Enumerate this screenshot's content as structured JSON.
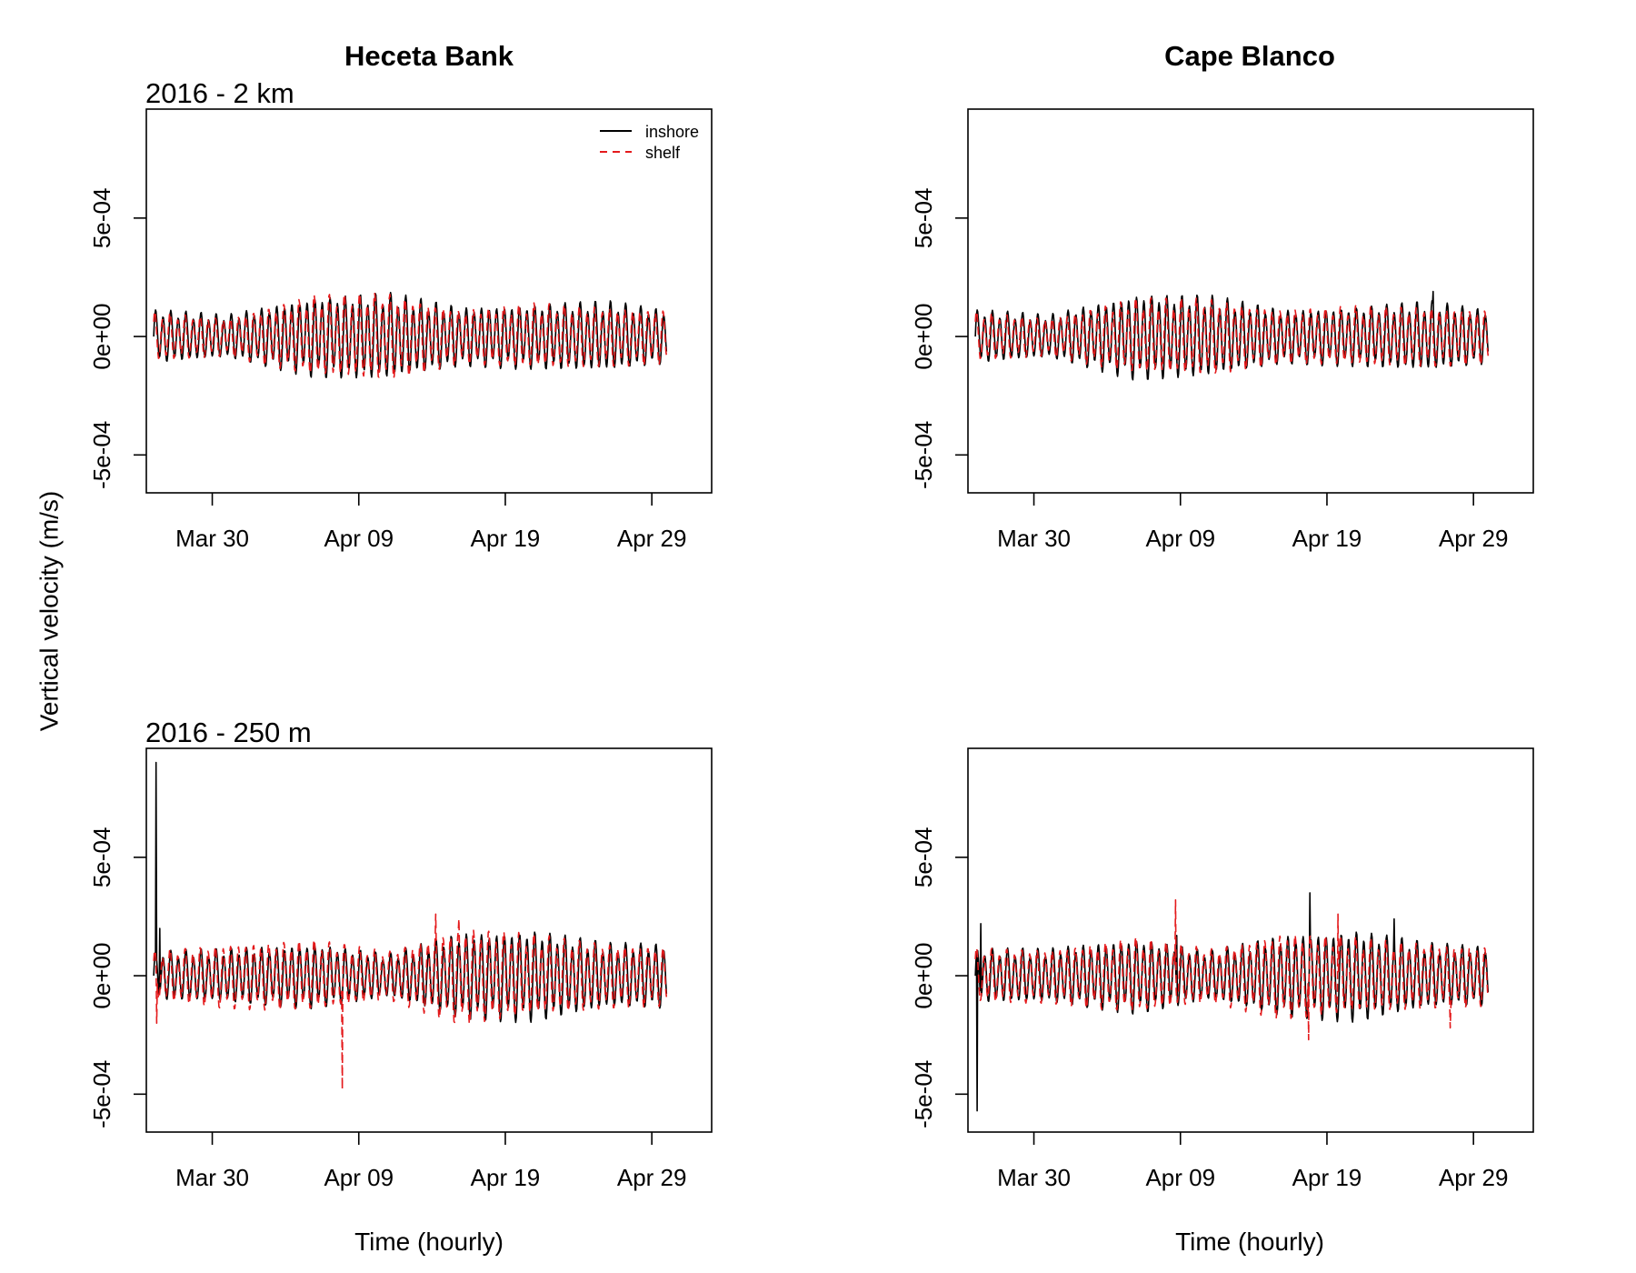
{
  "figure": {
    "y_axis_title": "Vertical velocity (m/s)",
    "x_axis_title": "Time (hourly)",
    "column_titles": [
      "Heceta Bank",
      "Cape Blanco"
    ],
    "row_labels": [
      "2016 - 2 km",
      "2016 - 250 m"
    ]
  },
  "legend": {
    "position": "top-right of first panel",
    "entries": [
      {
        "label": "inshore",
        "color": "#000000",
        "line": "solid"
      },
      {
        "label": "shelf",
        "color": "#e41a1c",
        "line": "dashed"
      }
    ]
  },
  "colors": {
    "inshore": "#000000",
    "shelf": "#e41a1c"
  },
  "chart_data": [
    {
      "type": "line",
      "panel": "Heceta Bank, 2016 - 2 km",
      "xlabel": "Time (hourly)",
      "ylabel": "Vertical velocity (m/s)",
      "x_start": "2016-03-26",
      "x_end": "2016-04-30",
      "xlim": [
        "2016-03-25T12:00",
        "2016-05-03T02:00"
      ],
      "ylim": [
        -0.00066,
        0.00096
      ],
      "x_ticks": [
        "Mar 30",
        "Apr 09",
        "Apr 19",
        "Apr 29"
      ],
      "y_ticks": [
        "-5e-04",
        "0e+00",
        "5e-04"
      ],
      "series": [
        {
          "name": "inshore",
          "period_hours": 12.42,
          "mean": 0.0,
          "amplitude_envelope": [
            {
              "date": "2016-03-26",
              "amp": 0.0001
            },
            {
              "date": "2016-03-31",
              "amp": 8e-05
            },
            {
              "date": "2016-04-06",
              "amp": 0.00015
            },
            {
              "date": "2016-04-11",
              "amp": 0.00016
            },
            {
              "date": "2016-04-16",
              "amp": 0.00011
            },
            {
              "date": "2016-04-21",
              "amp": 0.00012
            },
            {
              "date": "2016-04-26",
              "amp": 0.00013
            },
            {
              "date": "2016-04-30",
              "amp": 0.0001
            }
          ],
          "spikes": []
        },
        {
          "name": "shelf",
          "period_hours": 12.42,
          "mean": 0.0,
          "amplitude_envelope": [
            {
              "date": "2016-03-26",
              "amp": 9e-05
            },
            {
              "date": "2016-03-31",
              "amp": 7e-05
            },
            {
              "date": "2016-04-06",
              "amp": 0.00015
            },
            {
              "date": "2016-04-11",
              "amp": 0.00016
            },
            {
              "date": "2016-04-16",
              "amp": 0.0001
            },
            {
              "date": "2016-04-21",
              "amp": 0.00012
            },
            {
              "date": "2016-04-26",
              "amp": 0.00011
            },
            {
              "date": "2016-04-30",
              "amp": 0.0001
            }
          ],
          "spikes": []
        }
      ]
    },
    {
      "type": "line",
      "panel": "Cape Blanco, 2016 - 2 km",
      "xlabel": "",
      "ylabel": "",
      "x_start": "2016-03-26",
      "x_end": "2016-04-30",
      "xlim": [
        "2016-03-25T12:00",
        "2016-05-03T02:00"
      ],
      "ylim": [
        -0.00066,
        0.00096
      ],
      "x_ticks": [
        "Mar 30",
        "Apr 09",
        "Apr 19",
        "Apr 29"
      ],
      "y_ticks": [
        "-5e-04",
        "0e+00",
        "5e-04"
      ],
      "series": [
        {
          "name": "inshore",
          "period_hours": 12.42,
          "mean": 0.0,
          "amplitude_envelope": [
            {
              "date": "2016-03-26",
              "amp": 0.0001
            },
            {
              "date": "2016-03-31",
              "amp": 8e-05
            },
            {
              "date": "2016-04-06",
              "amp": 0.00016
            },
            {
              "date": "2016-04-11",
              "amp": 0.00015
            },
            {
              "date": "2016-04-16",
              "amp": 0.0001
            },
            {
              "date": "2016-04-21",
              "amp": 0.00011
            },
            {
              "date": "2016-04-26",
              "amp": 0.00013
            },
            {
              "date": "2016-04-30",
              "amp": 0.0001
            }
          ],
          "spikes": [
            {
              "date": "2016-04-26T06:00",
              "value": 0.00019
            }
          ]
        },
        {
          "name": "shelf",
          "period_hours": 12.42,
          "mean": 0.0,
          "amplitude_envelope": [
            {
              "date": "2016-03-26",
              "amp": 9e-05
            },
            {
              "date": "2016-03-31",
              "amp": 7e-05
            },
            {
              "date": "2016-04-06",
              "amp": 0.00014
            },
            {
              "date": "2016-04-11",
              "amp": 0.00014
            },
            {
              "date": "2016-04-16",
              "amp": 0.0001
            },
            {
              "date": "2016-04-21",
              "amp": 0.00011
            },
            {
              "date": "2016-04-26",
              "amp": 0.00011
            },
            {
              "date": "2016-04-30",
              "amp": 0.0001
            }
          ],
          "spikes": []
        }
      ]
    },
    {
      "type": "line",
      "panel": "Heceta Bank, 2016 - 250 m",
      "xlabel": "Time (hourly)",
      "ylabel": "",
      "x_start": "2016-03-26",
      "x_end": "2016-04-30",
      "xlim": [
        "2016-03-25T12:00",
        "2016-05-03T02:00"
      ],
      "ylim": [
        -0.00066,
        0.00096
      ],
      "x_ticks": [
        "Mar 30",
        "Apr 09",
        "Apr 19",
        "Apr 29"
      ],
      "y_ticks": [
        "-5e-04",
        "0e+00",
        "5e-04"
      ],
      "series": [
        {
          "name": "inshore",
          "period_hours": 12.42,
          "mean": 0.0,
          "amplitude_envelope": [
            {
              "date": "2016-03-26",
              "amp": 9e-05
            },
            {
              "date": "2016-03-31",
              "amp": 0.0001
            },
            {
              "date": "2016-04-06",
              "amp": 0.00012
            },
            {
              "date": "2016-04-11",
              "amp": 8e-05
            },
            {
              "date": "2016-04-16",
              "amp": 0.00016
            },
            {
              "date": "2016-04-21",
              "amp": 0.00017
            },
            {
              "date": "2016-04-26",
              "amp": 0.00012
            },
            {
              "date": "2016-04-30",
              "amp": 0.00012
            }
          ],
          "spikes": [
            {
              "date": "2016-03-26T04:00",
              "value": 0.0009
            },
            {
              "date": "2016-03-26T10:00",
              "value": 0.0002
            }
          ]
        },
        {
          "name": "shelf",
          "period_hours": 12.42,
          "mean": 0.0,
          "amplitude_envelope": [
            {
              "date": "2016-03-26",
              "amp": 9e-05
            },
            {
              "date": "2016-03-31",
              "amp": 0.00012
            },
            {
              "date": "2016-04-06",
              "amp": 0.00013
            },
            {
              "date": "2016-04-11",
              "amp": 9e-05
            },
            {
              "date": "2016-04-16",
              "amp": 0.00018
            },
            {
              "date": "2016-04-21",
              "amp": 0.00015
            },
            {
              "date": "2016-04-26",
              "amp": 0.00012
            },
            {
              "date": "2016-04-30",
              "amp": 0.00011
            }
          ],
          "spikes": [
            {
              "date": "2016-03-26T05:00",
              "value": 0.00039
            },
            {
              "date": "2016-03-26T05:00",
              "value": -0.0002
            },
            {
              "date": "2016-04-07T21:00",
              "value": -0.00048
            },
            {
              "date": "2016-04-14T06:00",
              "value": 0.00026
            },
            {
              "date": "2016-04-15T20:00",
              "value": 0.00024
            }
          ]
        }
      ]
    },
    {
      "type": "line",
      "panel": "Cape Blanco, 2016 - 250 m",
      "xlabel": "Time (hourly)",
      "ylabel": "",
      "x_start": "2016-03-26",
      "x_end": "2016-04-30",
      "xlim": [
        "2016-03-25T12:00",
        "2016-05-03T02:00"
      ],
      "ylim": [
        -0.00066,
        0.00096
      ],
      "x_ticks": [
        "Mar 30",
        "Apr 09",
        "Apr 19",
        "Apr 29"
      ],
      "y_ticks": [
        "-5e-04",
        "0e+00",
        "5e-04"
      ],
      "series": [
        {
          "name": "inshore",
          "period_hours": 12.42,
          "mean": 0.0,
          "amplitude_envelope": [
            {
              "date": "2016-03-26",
              "amp": 0.0001
            },
            {
              "date": "2016-03-31",
              "amp": 0.0001
            },
            {
              "date": "2016-04-06",
              "amp": 0.00014
            },
            {
              "date": "2016-04-11",
              "amp": 9e-05
            },
            {
              "date": "2016-04-16",
              "amp": 0.00015
            },
            {
              "date": "2016-04-21",
              "amp": 0.00017
            },
            {
              "date": "2016-04-26",
              "amp": 0.00012
            },
            {
              "date": "2016-04-30",
              "amp": 0.00011
            }
          ],
          "spikes": [
            {
              "date": "2016-03-26T03:00",
              "value": -0.00057
            },
            {
              "date": "2016-03-26T09:00",
              "value": 0.00022
            },
            {
              "date": "2016-04-08T18:00",
              "value": 0.00017
            },
            {
              "date": "2016-04-17T20:00",
              "value": 0.00035
            },
            {
              "date": "2016-04-23T14:00",
              "value": 0.00024
            }
          ]
        },
        {
          "name": "shelf",
          "period_hours": 12.42,
          "mean": 0.0,
          "amplitude_envelope": [
            {
              "date": "2016-03-26",
              "amp": 0.0001
            },
            {
              "date": "2016-03-31",
              "amp": 0.0001
            },
            {
              "date": "2016-04-06",
              "amp": 0.00014
            },
            {
              "date": "2016-04-11",
              "amp": 0.0001
            },
            {
              "date": "2016-04-16",
              "amp": 0.00016
            },
            {
              "date": "2016-04-21",
              "amp": 0.00014
            },
            {
              "date": "2016-04-26",
              "amp": 0.00012
            },
            {
              "date": "2016-04-30",
              "amp": 0.00011
            }
          ],
          "spikes": [
            {
              "date": "2016-04-08T16:00",
              "value": 0.00032
            },
            {
              "date": "2016-04-17T18:00",
              "value": -0.00027
            },
            {
              "date": "2016-04-19T18:00",
              "value": 0.00026
            },
            {
              "date": "2016-04-27T10:00",
              "value": -0.00022
            }
          ]
        }
      ]
    }
  ]
}
